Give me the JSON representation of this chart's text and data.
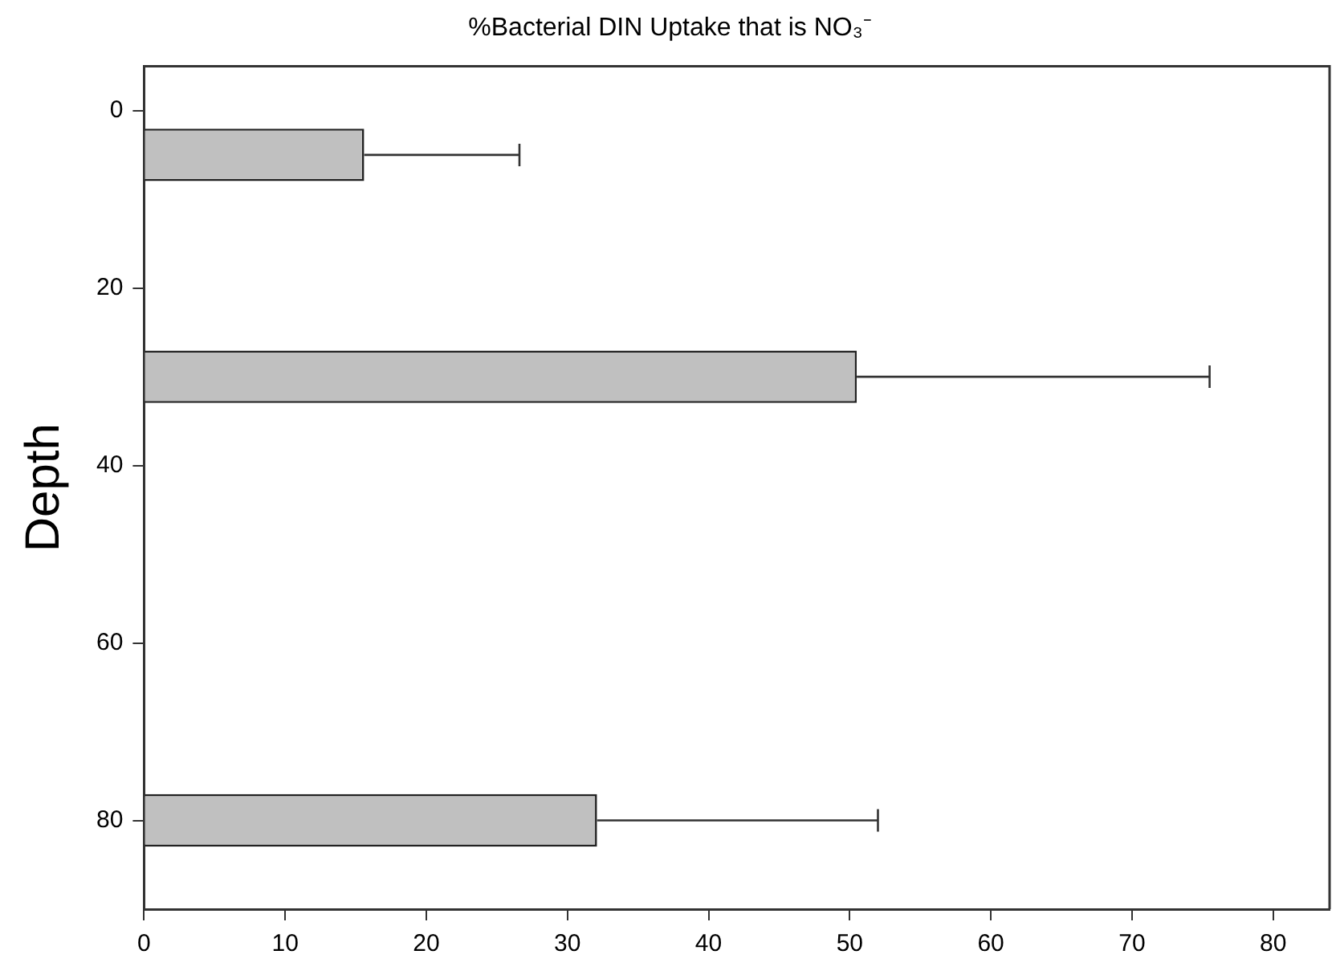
{
  "chart_data": {
    "type": "bar",
    "orientation": "horizontal",
    "title": "%Bacterial DIN Uptake that is NO₃⁻",
    "ylabel": "Depth",
    "x": [
      5,
      30,
      80
    ],
    "values": [
      15.6,
      50.5,
      32.1
    ],
    "errors": [
      [
        15.6,
        26.6
      ],
      [
        50.5,
        75.5
      ],
      [
        32.1,
        52.0
      ]
    ],
    "color": "#c0c0c0",
    "xlim": [
      0,
      84
    ],
    "xticks": [
      0,
      10,
      20,
      30,
      40,
      50,
      60,
      70,
      80
    ],
    "ylim": [
      90,
      -5
    ],
    "yticks": [
      0,
      20,
      40,
      60,
      80
    ],
    "grid": false
  }
}
